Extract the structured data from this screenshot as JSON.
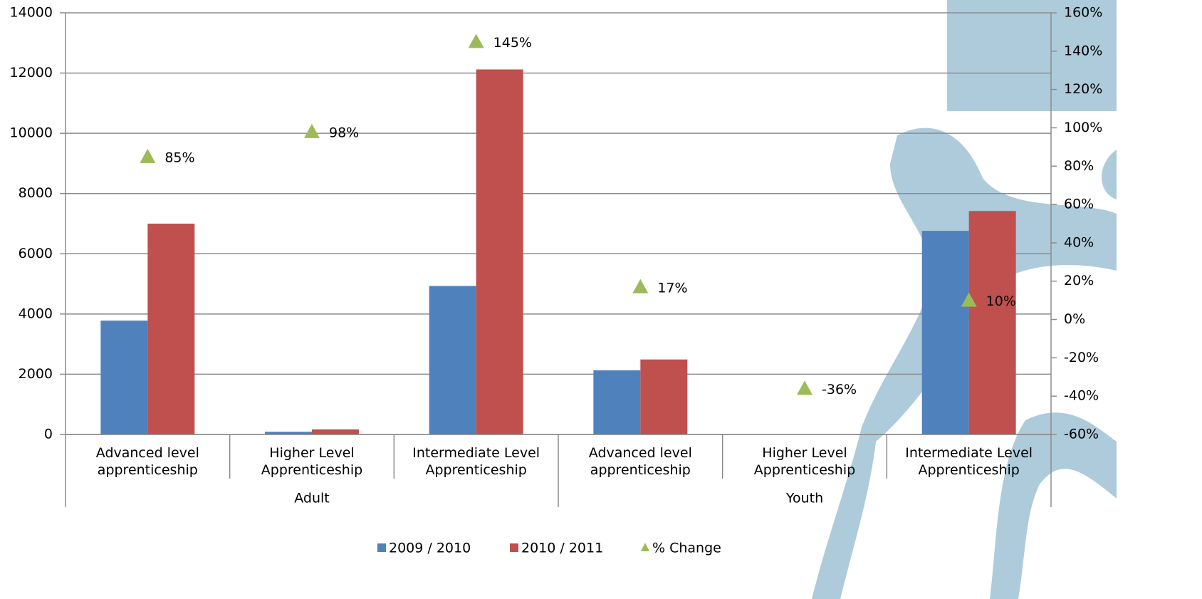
{
  "chart_data": {
    "type": "bar",
    "categories": [
      "Advanced level apprenticeship",
      "Higher Level Apprenticeship",
      "Intermediate Level Apprenticeship",
      "Advanced level apprenticeship",
      "Higher Level Apprenticeship",
      "Intermediate Level Apprenticeship"
    ],
    "category_groups": [
      "Adult",
      "Adult",
      "Adult",
      "Youth",
      "Youth",
      "Youth"
    ],
    "series": [
      {
        "name": "2009 / 2010",
        "color": "#4f81bd",
        "type": "bar",
        "values": [
          3780,
          90,
          4930,
          2130,
          14,
          6760
        ]
      },
      {
        "name": "2010 / 2011",
        "color": "#c0504d",
        "type": "bar",
        "values": [
          7000,
          170,
          12120,
          2490,
          9,
          7420
        ]
      },
      {
        "name": "% Change",
        "color": "#9bbb59",
        "type": "scatter",
        "axis": "y2",
        "values": [
          85,
          98,
          145,
          17,
          -36,
          10
        ],
        "value_labels": [
          "85%",
          "98%",
          "145%",
          "17%",
          "-36%",
          "10%"
        ]
      }
    ],
    "ylim": [
      0,
      14000
    ],
    "yticks": [
      0,
      2000,
      4000,
      6000,
      8000,
      10000,
      12000,
      14000
    ],
    "y2lim": [
      -60,
      160
    ],
    "y2ticks": [
      {
        "value": -60,
        "label": "-60%"
      },
      {
        "value": -40,
        "label": "-40%"
      },
      {
        "value": -20,
        "label": "-20%"
      },
      {
        "value": 0,
        "label": "0%"
      },
      {
        "value": 20,
        "label": "20%"
      },
      {
        "value": 40,
        "label": "40%"
      },
      {
        "value": 60,
        "label": "60%"
      },
      {
        "value": 80,
        "label": "80%"
      },
      {
        "value": 100,
        "label": "100%"
      },
      {
        "value": 120,
        "label": "120%"
      },
      {
        "value": 140,
        "label": "140%"
      },
      {
        "value": 160,
        "label": "160%"
      }
    ],
    "grid": true,
    "legend": "bottom"
  }
}
